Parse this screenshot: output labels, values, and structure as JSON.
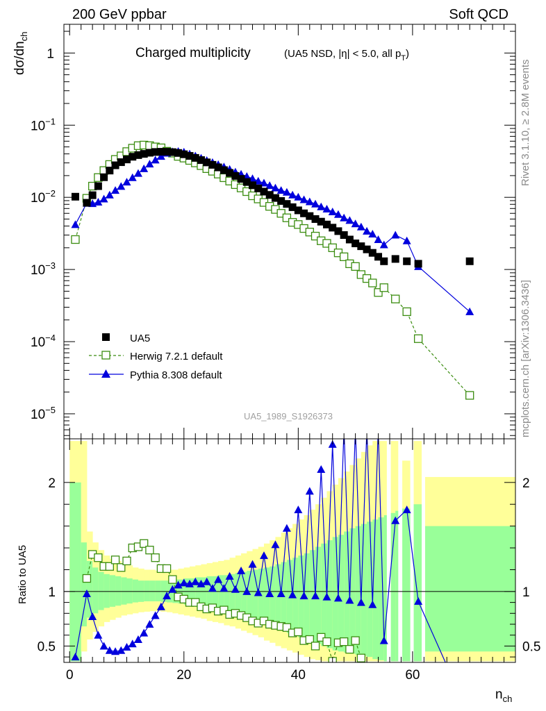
{
  "header": {
    "left_label": "200 GeV ppbar",
    "right_label": "Soft QCD"
  },
  "side_labels": {
    "rivet": "Rivet 3.1.10, ≥ 2.8M events",
    "mcplots": "mcplots.cern.ch [arXiv:1306.3436]"
  },
  "analysis_tag": "UA5_1989_S1926373",
  "colors": {
    "data": "#000000",
    "herwig": "#3a8c0f",
    "pythia": "#0000dd",
    "band_inner": "#99ff99",
    "band_outer": "#ffff99"
  },
  "chart_data": [
    {
      "type": "scatter",
      "panel": "main",
      "title": "Charged multiplicity",
      "subtitle": "(UA5 NSD, |η| < 5.0, all p",
      "subtitle_subscript": "T",
      "subtitle_close": ")",
      "ylabel_main": "dσ/dn",
      "ylabel_sub": "ch",
      "xlabel_main": "n",
      "xlabel_sub": "ch",
      "xlim": [
        -1,
        78
      ],
      "ylim": [
        4.5e-06,
        2.5
      ],
      "yscale": "log",
      "x_ticks": [
        0,
        20,
        40,
        60
      ],
      "y_ticks": [
        {
          "base": "1",
          "exp": ""
        },
        {
          "base": "10",
          "exp": "−1"
        },
        {
          "base": "10",
          "exp": "−2"
        },
        {
          "base": "10",
          "exp": "−3"
        },
        {
          "base": "10",
          "exp": "−4"
        },
        {
          "base": "10",
          "exp": "−5"
        }
      ],
      "y_tick_values": [
        1,
        0.1,
        0.01,
        0.001,
        0.0001,
        1e-05
      ],
      "legend_placement": "bottom-left",
      "series": [
        {
          "name": "UA5",
          "style": "filled-square",
          "x": [
            1,
            3,
            4,
            5,
            6,
            7,
            8,
            9,
            10,
            11,
            12,
            13,
            14,
            15,
            16,
            17,
            18,
            19,
            20,
            21,
            22,
            23,
            24,
            25,
            26,
            27,
            28,
            29,
            30,
            31,
            32,
            33,
            34,
            35,
            36,
            37,
            38,
            39,
            40,
            41,
            42,
            43,
            44,
            45,
            46,
            47,
            48,
            49,
            50,
            51,
            52,
            53,
            54,
            55,
            57,
            59,
            61,
            70
          ],
          "y": [
            0.0102,
            0.0084,
            0.0107,
            0.0143,
            0.019,
            0.0235,
            0.0278,
            0.0307,
            0.0335,
            0.0365,
            0.0385,
            0.04,
            0.0415,
            0.0425,
            0.0428,
            0.0428,
            0.0423,
            0.0412,
            0.0395,
            0.0375,
            0.0352,
            0.0328,
            0.0305,
            0.0282,
            0.026,
            0.0238,
            0.0218,
            0.0198,
            0.018,
            0.0163,
            0.0147,
            0.0133,
            0.012,
            0.0108,
            0.0098,
            0.0089,
            0.0081,
            0.0073,
            0.0066,
            0.006,
            0.0055,
            0.005,
            0.0046,
            0.0042,
            0.0038,
            0.0034,
            0.003,
            0.0026,
            0.0023,
            0.0021,
            0.0019,
            0.0017,
            0.0015,
            0.0013,
            0.0014,
            0.0013,
            0.0012,
            0.0013
          ]
        },
        {
          "name": "Herwig 7.2.1 default",
          "style": "open-square-dashed",
          "x": [
            1,
            3,
            4,
            5,
            6,
            7,
            8,
            9,
            10,
            11,
            12,
            13,
            14,
            15,
            16,
            17,
            18,
            19,
            20,
            21,
            22,
            23,
            24,
            25,
            26,
            27,
            28,
            29,
            30,
            31,
            32,
            33,
            34,
            35,
            36,
            37,
            38,
            39,
            40,
            41,
            42,
            43,
            44,
            45,
            46,
            47,
            48,
            49,
            50,
            51,
            52,
            53,
            54,
            55,
            57,
            59,
            61,
            70
          ],
          "y": [
            0.0026,
            0.0097,
            0.0143,
            0.0188,
            0.0235,
            0.0285,
            0.0335,
            0.0375,
            0.043,
            0.048,
            0.052,
            0.053,
            0.052,
            0.05,
            0.0485,
            0.0435,
            0.041,
            0.037,
            0.035,
            0.0325,
            0.03,
            0.0275,
            0.025,
            0.023,
            0.021,
            0.0187,
            0.0168,
            0.015,
            0.0135,
            0.012,
            0.0105,
            0.0095,
            0.0085,
            0.0075,
            0.0068,
            0.006,
            0.0052,
            0.0045,
            0.0042,
            0.0037,
            0.0033,
            0.0029,
            0.0025,
            0.0023,
            0.002,
            0.0017,
            0.0015,
            0.0012,
            0.0011,
            0.00085,
            0.00075,
            0.00065,
            0.00048,
            0.00056,
            0.00039,
            0.00026,
            0.00011,
            1.8e-05
          ]
        },
        {
          "name": "Pythia 8.308 default",
          "style": "filled-triangle-solid",
          "x": [
            1,
            3,
            4,
            5,
            6,
            7,
            8,
            9,
            10,
            11,
            12,
            13,
            14,
            15,
            16,
            17,
            18,
            19,
            20,
            21,
            22,
            23,
            24,
            25,
            26,
            27,
            28,
            29,
            30,
            31,
            32,
            33,
            34,
            35,
            36,
            37,
            38,
            39,
            40,
            41,
            42,
            43,
            44,
            45,
            46,
            47,
            48,
            49,
            50,
            51,
            52,
            53,
            54,
            55,
            57,
            59,
            61,
            70
          ],
          "y": [
            0.0042,
            0.0083,
            0.0082,
            0.0086,
            0.0095,
            0.0108,
            0.0125,
            0.0142,
            0.0163,
            0.0188,
            0.0215,
            0.025,
            0.029,
            0.033,
            0.037,
            0.041,
            0.043,
            0.0435,
            0.0425,
            0.04,
            0.0375,
            0.035,
            0.0325,
            0.0305,
            0.0285,
            0.0265,
            0.0245,
            0.0225,
            0.021,
            0.0195,
            0.0182,
            0.0168,
            0.0158,
            0.0146,
            0.0135,
            0.0125,
            0.0118,
            0.0108,
            0.0101,
            0.0093,
            0.0087,
            0.0081,
            0.0074,
            0.0069,
            0.0063,
            0.0058,
            0.0052,
            0.0048,
            0.0043,
            0.0039,
            0.0034,
            0.0031,
            0.0026,
            0.0022,
            0.003,
            0.0025,
            0.0011,
            0.00026
          ]
        }
      ]
    },
    {
      "type": "line",
      "panel": "ratio",
      "ylabel": "Ratio to UA5",
      "xlim": [
        -1,
        78
      ],
      "ylim": [
        0.35,
        2.4
      ],
      "y_ticks": [
        0.5,
        1,
        2
      ],
      "y_tick_labels": [
        "0.5",
        "1",
        "2"
      ],
      "x_ticks": [
        0,
        20,
        40,
        60
      ],
      "reference_line": 1,
      "band_edges": [
        0,
        2,
        3,
        4,
        5,
        6,
        7,
        8,
        9,
        10,
        11,
        12,
        13,
        14,
        15,
        16,
        17,
        18,
        19,
        20,
        21,
        22,
        23,
        24,
        25,
        26,
        27,
        28,
        29,
        30,
        31,
        32,
        33,
        34,
        35,
        36,
        37,
        38,
        39,
        40,
        41,
        42,
        43,
        44,
        45,
        46,
        47,
        48,
        49,
        50,
        51,
        52,
        53,
        54,
        55,
        56,
        57,
        58,
        60,
        62,
        78
      ],
      "band_inner_lo": [
        0.36,
        0.68,
        0.76,
        0.8,
        0.83,
        0.85,
        0.86,
        0.87,
        0.88,
        0.89,
        0.9,
        0.905,
        0.91,
        0.91,
        0.91,
        0.905,
        0.9,
        0.895,
        0.89,
        0.88,
        0.87,
        0.86,
        0.85,
        0.84,
        0.83,
        0.82,
        0.81,
        0.8,
        0.79,
        0.77,
        0.76,
        0.74,
        0.72,
        0.7,
        0.68,
        0.66,
        0.64,
        0.62,
        0.6,
        0.58,
        0.56,
        0.54,
        0.52,
        0.5,
        0.48,
        0.46,
        0.45,
        0.44,
        0.43,
        0.42,
        0.41,
        0.4,
        0.38,
        0.37,
        0.36,
        0.36,
        0.36,
        0.36,
        0.36,
        0.45
      ],
      "band_inner_hi": [
        2.0,
        1.45,
        1.28,
        1.22,
        1.18,
        1.16,
        1.15,
        1.14,
        1.13,
        1.12,
        1.11,
        1.1,
        1.1,
        1.1,
        1.1,
        1.1,
        1.1,
        1.11,
        1.11,
        1.12,
        1.12,
        1.13,
        1.13,
        1.14,
        1.14,
        1.15,
        1.15,
        1.16,
        1.17,
        1.18,
        1.19,
        1.2,
        1.21,
        1.22,
        1.23,
        1.25,
        1.27,
        1.29,
        1.31,
        1.33,
        1.35,
        1.38,
        1.41,
        1.44,
        1.47,
        1.5,
        1.52,
        1.55,
        1.58,
        1.6,
        1.62,
        1.64,
        1.66,
        1.68,
        1.7,
        1.72,
        1.74,
        1.76,
        1.8,
        1.6
      ],
      "band_outer_lo": [
        0.36,
        0.45,
        0.56,
        0.63,
        0.68,
        0.72,
        0.74,
        0.76,
        0.78,
        0.79,
        0.8,
        0.81,
        0.815,
        0.82,
        0.82,
        0.815,
        0.81,
        0.8,
        0.79,
        0.78,
        0.77,
        0.76,
        0.75,
        0.73,
        0.72,
        0.71,
        0.69,
        0.68,
        0.66,
        0.64,
        0.62,
        0.6,
        0.58,
        0.55,
        0.53,
        0.5,
        0.48,
        0.46,
        0.44,
        0.42,
        0.4,
        0.38,
        0.37,
        0.36,
        0.36,
        0.36,
        0.36,
        0.36,
        0.36,
        0.36,
        0.36,
        0.36,
        0.36,
        0.36,
        0.36,
        0.36,
        0.36,
        0.36,
        0.36,
        0.36
      ],
      "band_outer_hi": [
        2.38,
        2.38,
        1.55,
        1.45,
        1.38,
        1.33,
        1.3,
        1.28,
        1.26,
        1.24,
        1.22,
        1.21,
        1.2,
        1.2,
        1.19,
        1.19,
        1.2,
        1.2,
        1.21,
        1.22,
        1.23,
        1.24,
        1.25,
        1.26,
        1.27,
        1.28,
        1.29,
        1.31,
        1.33,
        1.35,
        1.37,
        1.39,
        1.41,
        1.44,
        1.47,
        1.5,
        1.54,
        1.58,
        1.62,
        1.66,
        1.7,
        1.75,
        1.8,
        1.86,
        1.92,
        1.98,
        2.04,
        2.1,
        2.16,
        2.22,
        2.28,
        2.34,
        2.38,
        2.38,
        2.38,
        2.38,
        2.38,
        2.2,
        2.38,
        2.05
      ],
      "band_gaps": [
        [
          55.5,
          56.2
        ],
        [
          57.5,
          58.2
        ],
        [
          59.6,
          60.2
        ],
        [
          61.6,
          62.2
        ]
      ],
      "series": [
        {
          "name": "Herwig 7.2.1 default",
          "style": "open-square-dashed",
          "x": [
            3,
            4,
            5,
            6,
            7,
            8,
            9,
            10,
            11,
            12,
            13,
            14,
            15,
            16,
            17,
            18,
            19,
            20,
            21,
            22,
            23,
            24,
            25,
            26,
            27,
            28,
            29,
            30,
            31,
            32,
            33,
            34,
            35,
            36,
            37,
            38,
            39,
            40,
            41,
            42,
            43,
            44,
            45,
            46,
            47,
            48,
            49,
            50,
            51
          ],
          "y": [
            1.12,
            1.34,
            1.31,
            1.23,
            1.23,
            1.29,
            1.22,
            1.28,
            1.4,
            1.41,
            1.44,
            1.38,
            1.31,
            1.21,
            1.21,
            1.11,
            0.95,
            0.93,
            0.9,
            0.9,
            0.86,
            0.84,
            0.85,
            0.82,
            0.83,
            0.79,
            0.8,
            0.78,
            0.76,
            0.73,
            0.71,
            0.73,
            0.7,
            0.69,
            0.68,
            0.67,
            0.62,
            0.63,
            0.55,
            0.56,
            0.5,
            0.58,
            0.54,
            0.36,
            0.53,
            0.54,
            0.47,
            0.55,
            0.39
          ]
        },
        {
          "name": "Pythia 8.308 default",
          "style": "filled-triangle-solid",
          "x": [
            1,
            3,
            4,
            5,
            6,
            7,
            8,
            9,
            10,
            11,
            12,
            13,
            14,
            15,
            16,
            17,
            18,
            19,
            20,
            21,
            22,
            23,
            24,
            25,
            26,
            27,
            28,
            29,
            30,
            31,
            32,
            33,
            34,
            35,
            36,
            37,
            38,
            39,
            40,
            41,
            42,
            43,
            44,
            45,
            46,
            47,
            48,
            49,
            50,
            51,
            52,
            53,
            54,
            55,
            57,
            59,
            61,
            66
          ],
          "y": [
            0.4,
            0.98,
            0.77,
            0.6,
            0.5,
            0.46,
            0.45,
            0.46,
            0.49,
            0.52,
            0.56,
            0.62,
            0.7,
            0.78,
            0.86,
            0.96,
            1.02,
            1.06,
            1.08,
            1.07,
            1.09,
            1.07,
            1.09,
            1.03,
            1.11,
            1.03,
            1.14,
            1.02,
            1.19,
            1.0,
            1.25,
            0.99,
            1.33,
            0.98,
            1.43,
            0.98,
            1.58,
            0.97,
            1.75,
            0.96,
            1.92,
            0.96,
            2.12,
            0.95,
            2.35,
            0.94,
            2.5,
            0.92,
            2.5,
            0.9,
            2.5,
            0.88,
            2.5,
            0.55,
            1.65,
            1.75,
            0.91,
            0.32
          ]
        }
      ]
    }
  ]
}
